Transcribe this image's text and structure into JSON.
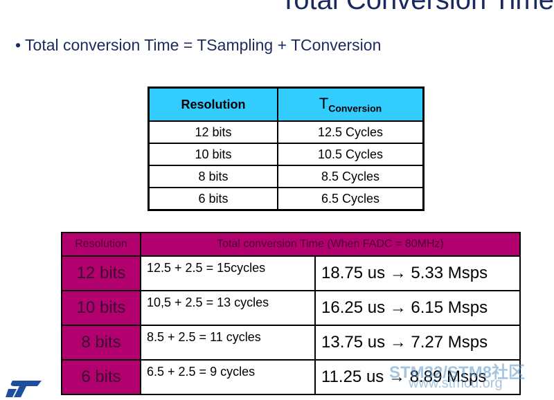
{
  "header": {
    "title": "Total Conversion Time"
  },
  "bullet": "Total conversion Time  = TSampling + TConversion",
  "table1": {
    "headers": [
      {
        "text": "Resolution"
      },
      {
        "main": "T",
        "sub": "Conversion"
      }
    ],
    "rows": [
      [
        "12 bits",
        "12.5 Cycles"
      ],
      [
        "10 bits",
        "10.5 Cycles"
      ],
      [
        "8 bits",
        "8.5 Cycles"
      ],
      [
        "6 bits",
        "6.5 Cycles"
      ]
    ]
  },
  "table2": {
    "headers": [
      "Resolution",
      "Total conversion Time (When FADC = 80MHz)"
    ],
    "rows": [
      [
        "12 bits",
        "12.5  + 2.5  = 15cycles",
        "18.75 us →  5.33 Msps"
      ],
      [
        "10 bits",
        "10,5 + 2.5  = 13 cycles",
        "16.25 us → 6.15 Msps"
      ],
      [
        "8 bits",
        "8.5 + 2.5  = 11 cycles",
        "13.75 us → 7.27 Msps"
      ],
      [
        "6 bits",
        "6.5 + 2.5  = 9 cycles",
        "11.25 us → 8.89 Msps"
      ]
    ]
  },
  "watermark": {
    "line1": "STM32/STM8社区",
    "line2": "www.stmcu.org"
  }
}
